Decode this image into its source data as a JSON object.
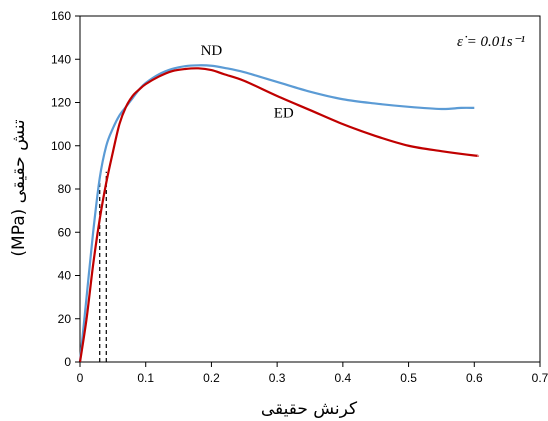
{
  "chart_data": {
    "type": "line",
    "xlabel": "کرنش حقیقی",
    "ylabel": "(MPa) تنش حقیقی",
    "annotation": "ε̇ = 0.01s⁻¹",
    "xlim": [
      0,
      0.7
    ],
    "ylim": [
      0,
      160
    ],
    "x_ticks": [
      "0",
      "0.1",
      "0.2",
      "0.3",
      "0.4",
      "0.5",
      "0.6",
      "0.7"
    ],
    "y_ticks": [
      "0",
      "20",
      "40",
      "60",
      "80",
      "100",
      "120",
      "140",
      "160"
    ],
    "grid": false,
    "series": [
      {
        "name": "ND",
        "color": "#5b9bd5",
        "x": [
          0,
          0.01,
          0.02,
          0.03,
          0.04,
          0.05,
          0.06,
          0.07,
          0.08,
          0.09,
          0.1,
          0.12,
          0.14,
          0.16,
          0.18,
          0.2,
          0.22,
          0.25,
          0.3,
          0.35,
          0.4,
          0.45,
          0.5,
          0.55,
          0.58,
          0.6
        ],
        "y": [
          0,
          30,
          60,
          85,
          100,
          108,
          114,
          118,
          122,
          126,
          129,
          133,
          135.5,
          136.8,
          137.2,
          137,
          136,
          134,
          129.5,
          125,
          121.5,
          119.5,
          118,
          117,
          117.5,
          117.5
        ]
      },
      {
        "name": "ED",
        "color": "#c00000",
        "x": [
          0,
          0.01,
          0.02,
          0.03,
          0.04,
          0.05,
          0.06,
          0.07,
          0.08,
          0.09,
          0.1,
          0.12,
          0.14,
          0.16,
          0.18,
          0.2,
          0.22,
          0.25,
          0.3,
          0.35,
          0.4,
          0.45,
          0.5,
          0.55,
          0.6,
          0.605
        ],
        "y": [
          0,
          20,
          45,
          66,
          83,
          97,
          110,
          118,
          123,
          126,
          128.5,
          132,
          134.5,
          135.5,
          135.8,
          135,
          133,
          130,
          123,
          116.5,
          110,
          104.5,
          100,
          97.5,
          95.5,
          95.5
        ]
      }
    ],
    "reference_lines": [
      {
        "x": 0.03,
        "y_top": 85
      },
      {
        "x": 0.04,
        "y_top": 88
      }
    ],
    "series_label_positions": [
      {
        "name": "ND",
        "x": 0.2,
        "y": 142
      },
      {
        "name": "ED",
        "x": 0.31,
        "y": 113
      }
    ]
  }
}
